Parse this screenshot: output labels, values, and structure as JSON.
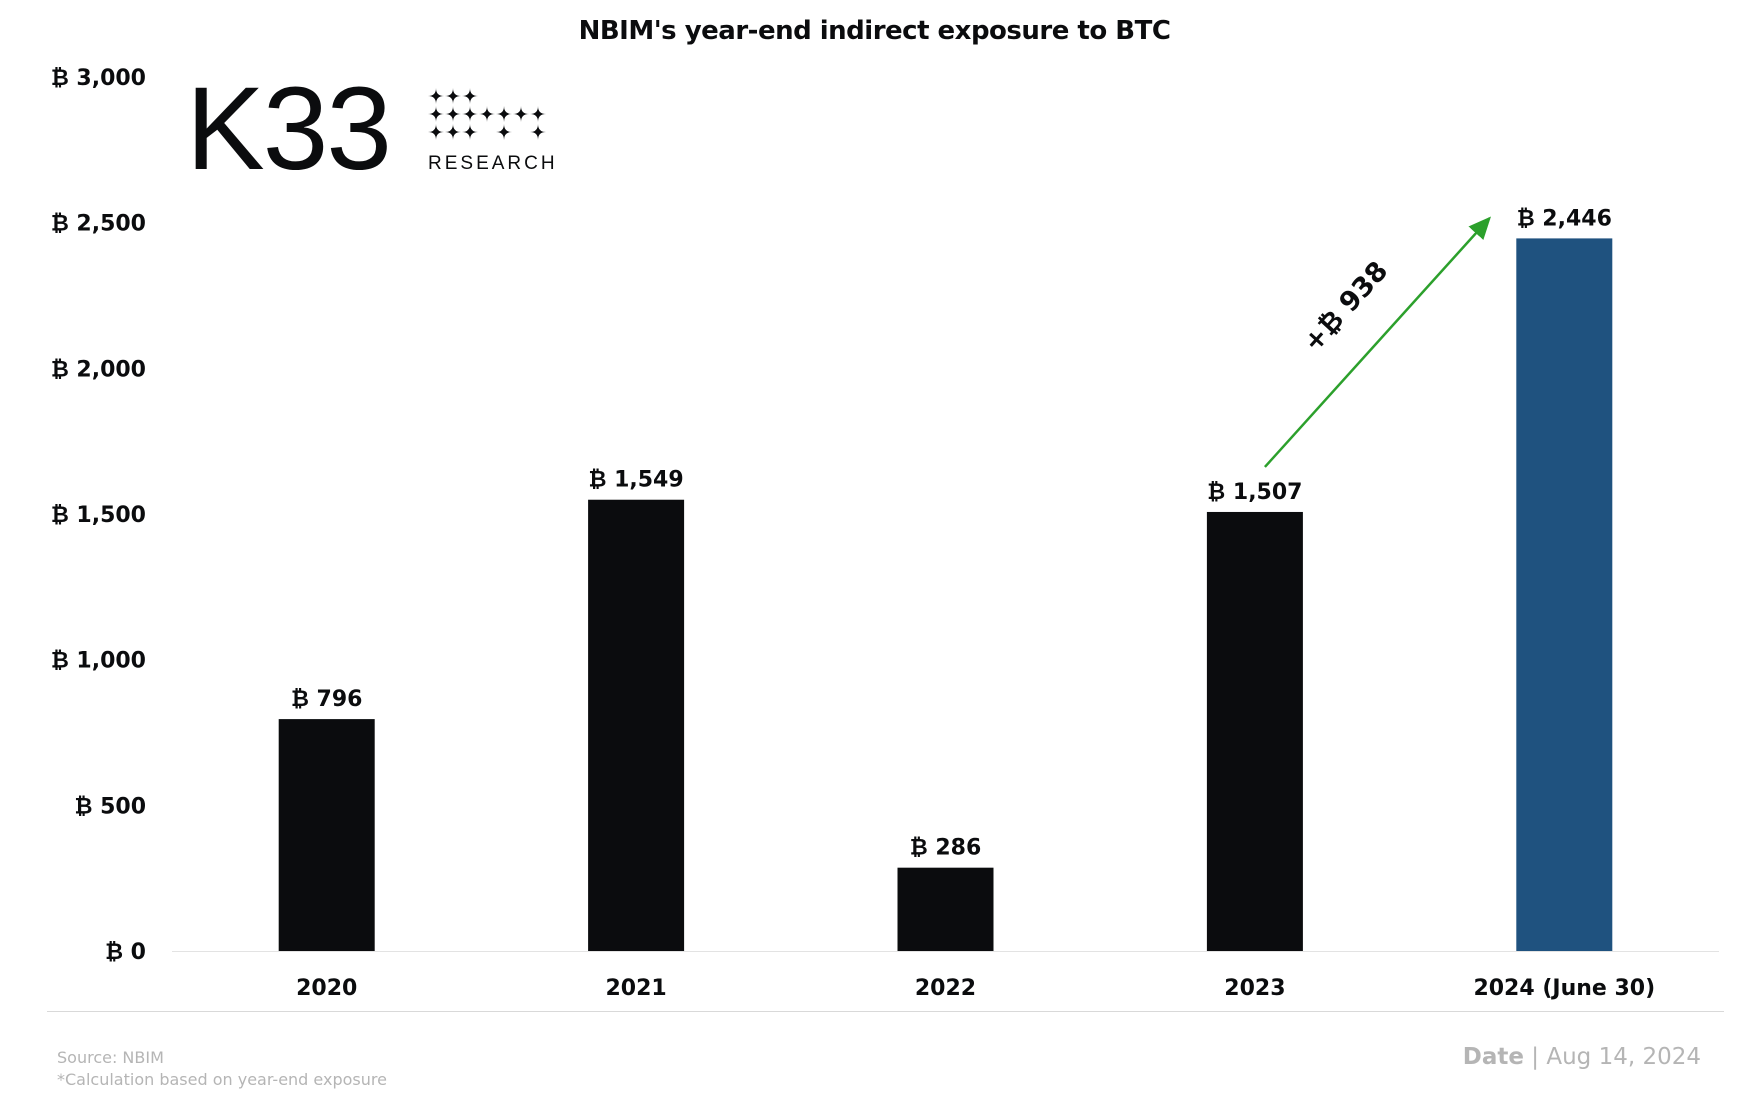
{
  "chart_data": {
    "type": "bar",
    "title": "NBIM's year-end indirect exposure to BTC",
    "categories": [
      "2020",
      "2021",
      "2022",
      "2023",
      "2024 (June 30)"
    ],
    "values": [
      796,
      1549,
      286,
      1507,
      2446
    ],
    "data_labels": [
      "₿ 796",
      "₿ 1,549",
      "₿ 286",
      "₿ 1,507",
      "₿ 2,446"
    ],
    "bar_colors": [
      "#0b0c0e",
      "#0b0c0e",
      "#0b0c0e",
      "#0b0c0e",
      "#1f527f"
    ],
    "ylim": [
      0,
      3000
    ],
    "yticks": [
      0,
      500,
      1000,
      1500,
      2000,
      2500,
      3000
    ],
    "ytick_labels": [
      "₿ 0",
      "₿ 500",
      "₿ 1,000",
      "₿ 1,500",
      "₿ 2,000",
      "₿ 2,500",
      "₿ 3,000"
    ],
    "grid": false,
    "xlabel": "",
    "ylabel": "",
    "annotation": {
      "text": "+₿ 938",
      "from": "2023",
      "to": "2024 (June 30)",
      "color": "#2ca02c"
    }
  },
  "logo": {
    "name": "K33",
    "subtitle": "RESEARCH"
  },
  "footer": {
    "source": "Source:  NBIM",
    "note": "*Calculation based on year-end exposure",
    "date_label": "Date",
    "date_sep": " | ",
    "date_value": "Aug 14, 2024"
  }
}
